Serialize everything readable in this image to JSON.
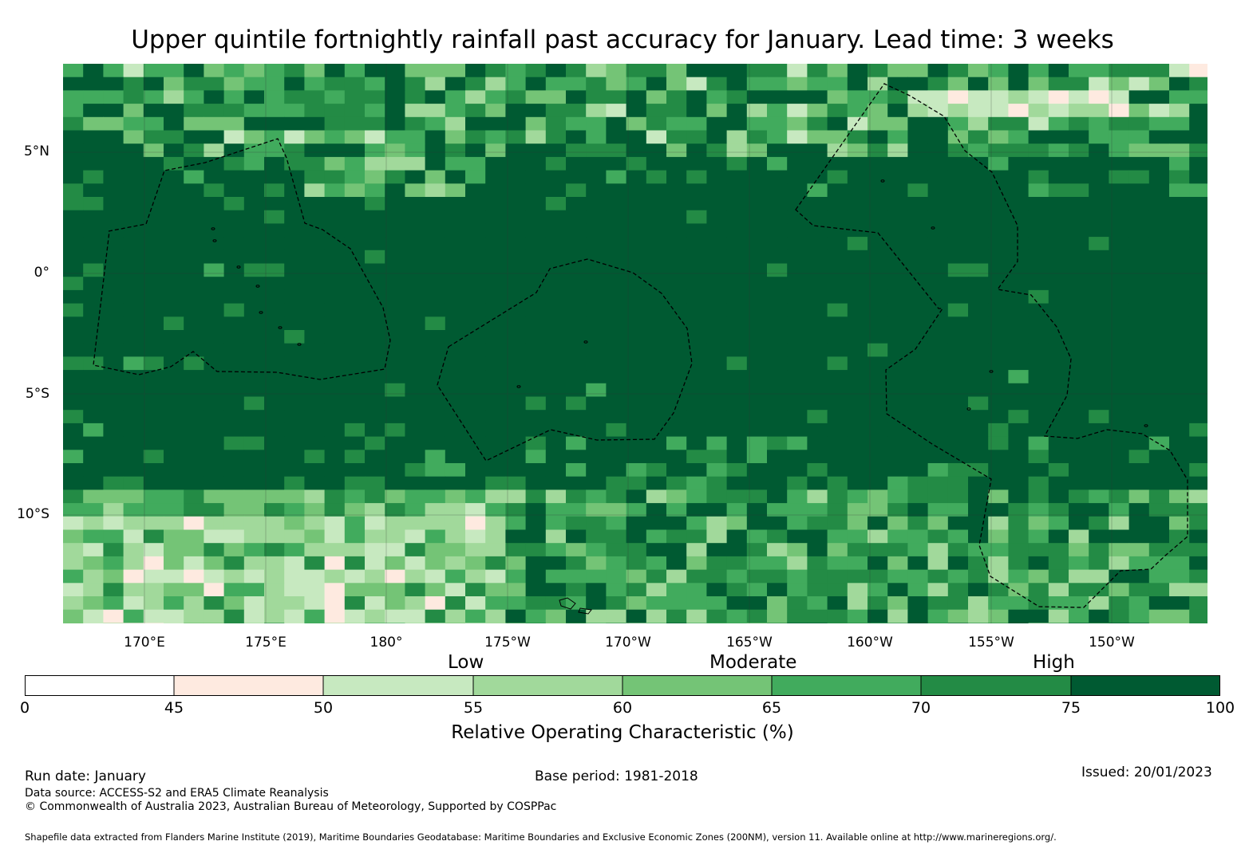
{
  "title": "Upper quintile fortnightly rainfall past accuracy for January. Lead time: 3 weeks",
  "map": {
    "lat_labels": [
      "5°N",
      "0°",
      "5°S",
      "10°S"
    ],
    "lon_labels": [
      "170°E",
      "175°E",
      "180°",
      "175°W",
      "170°W",
      "165°W",
      "160°W",
      "155°W",
      "150°W"
    ],
    "lon_range": [
      166.6,
      213.9
    ],
    "lat_range": [
      -14.2,
      8.8
    ],
    "colors": {
      "c0": "#ffffff",
      "c45": "#feeae0",
      "c50": "#c7e9c0",
      "c55": "#a1d99b",
      "c60": "#74c476",
      "c65": "#41ab5d",
      "c70": "#238b45",
      "c75": "#005a32",
      "outline": "#000000"
    }
  },
  "category_labels": {
    "low": "Low",
    "moderate": "Moderate",
    "high": "High"
  },
  "colorbar": {
    "ticks": [
      "0",
      "45",
      "50",
      "55",
      "60",
      "65",
      "70",
      "75",
      "100"
    ],
    "title": "Relative Operating Characteristic (%)"
  },
  "footer": {
    "run_date": "Run date: January",
    "base_period": "Base period: 1981-2018",
    "issued": "Issued: 20/01/2023",
    "data_source": "Data source: ACCESS-S2 and ERA5 Climate Reanalysis",
    "copyright": "© Commonwealth of Australia 2023, Australian Bureau of Meteorology, Supported by COSPPac",
    "shapefile": "Shapefile data extracted from Flanders Marine Institute (2019), Maritime Boundaries Geodatabase: Maritime Boundaries and Exclusive Economic Zones (200NM), version 11. Available online at http://www.marineregions.org/."
  }
}
